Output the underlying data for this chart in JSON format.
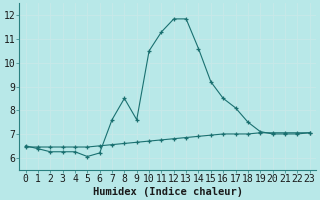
{
  "xlabel": "Humidex (Indice chaleur)",
  "xlim": [
    -0.5,
    23.5
  ],
  "ylim": [
    5.5,
    12.5
  ],
  "yticks": [
    6,
    7,
    8,
    9,
    10,
    11,
    12
  ],
  "xticks": [
    0,
    1,
    2,
    3,
    4,
    5,
    6,
    7,
    8,
    9,
    10,
    11,
    12,
    13,
    14,
    15,
    16,
    17,
    18,
    19,
    20,
    21,
    22,
    23
  ],
  "bg_color": "#b8e8e8",
  "grid_color": "#d8f0f0",
  "line_color": "#1a7070",
  "line1_x": [
    0,
    1,
    2,
    3,
    4,
    5,
    6,
    7,
    8,
    9,
    10,
    11,
    12,
    13,
    14,
    15,
    16,
    17,
    18,
    19,
    20,
    21,
    22,
    23
  ],
  "line1_y": [
    6.5,
    6.38,
    6.25,
    6.25,
    6.25,
    6.05,
    6.2,
    7.6,
    8.5,
    7.6,
    10.5,
    11.3,
    11.85,
    11.85,
    10.6,
    9.2,
    8.5,
    8.1,
    7.5,
    7.1,
    7.0,
    7.0,
    7.0,
    7.05
  ],
  "line2_x": [
    0,
    1,
    2,
    3,
    4,
    5,
    6,
    7,
    8,
    9,
    10,
    11,
    12,
    13,
    14,
    15,
    16,
    17,
    18,
    19,
    20,
    21,
    22,
    23
  ],
  "line2_y": [
    6.45,
    6.45,
    6.45,
    6.45,
    6.45,
    6.45,
    6.5,
    6.55,
    6.6,
    6.65,
    6.7,
    6.75,
    6.8,
    6.85,
    6.9,
    6.95,
    7.0,
    7.0,
    7.0,
    7.05,
    7.05,
    7.05,
    7.05,
    7.05
  ],
  "tick_fontsize": 7,
  "xlabel_fontsize": 7.5
}
